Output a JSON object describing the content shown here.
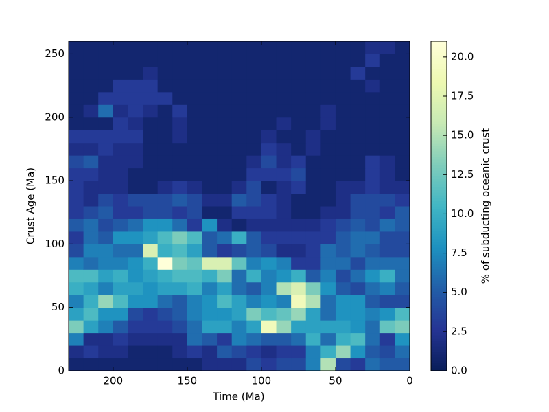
{
  "chart_data": {
    "type": "heatmap",
    "xlabel": "Time (Ma)",
    "ylabel": "Crust Age (Ma)",
    "colorbar_label": "% of subducting oceanic crust",
    "colormap": "YlGnBu",
    "xlim": [
      230,
      0
    ],
    "ylim": [
      0,
      260
    ],
    "clim": [
      0,
      21
    ],
    "xticks": [
      200,
      150,
      100,
      50,
      0
    ],
    "yticks": [
      0,
      50,
      100,
      150,
      200,
      250
    ],
    "cticks": [
      {
        "value": 0,
        "label": "0.0"
      },
      2.5,
      {
        "value": 5,
        "label": "5.0"
      },
      7.5,
      {
        "value": 10,
        "label": "10.0"
      },
      12.5,
      {
        "value": 15,
        "label": "15.0"
      },
      17.5,
      {
        "value": 20,
        "label": "20.0"
      }
    ],
    "xbins": [
      230,
      220,
      210,
      200,
      190,
      180,
      170,
      160,
      150,
      140,
      130,
      120,
      110,
      100,
      90,
      80,
      70,
      60,
      50,
      40,
      30,
      20,
      10,
      0
    ],
    "ybins": [
      0,
      10,
      20,
      30,
      40,
      50,
      60,
      70,
      80,
      90,
      100,
      110,
      120,
      130,
      140,
      150,
      160,
      170,
      180,
      190,
      200,
      210,
      220,
      230,
      240,
      250,
      260
    ],
    "values": [
      [
        1,
        1,
        1,
        1,
        1,
        1,
        1,
        1,
        1,
        2,
        2,
        2,
        4,
        3,
        4,
        4,
        7,
        15,
        4,
        3,
        6,
        5,
        5
      ],
      [
        2,
        3,
        2,
        2,
        1,
        1,
        1,
        2,
        3,
        2,
        5,
        4,
        3,
        2,
        3,
        3,
        7,
        10,
        14,
        8,
        5,
        4,
        6
      ],
      [
        7,
        2,
        2,
        3,
        2,
        2,
        2,
        2,
        6,
        5,
        3,
        7,
        6,
        5,
        5,
        6,
        10,
        6,
        10,
        11,
        6,
        3,
        8
      ],
      [
        13,
        9,
        7,
        5,
        3,
        3,
        3,
        4,
        6,
        9,
        9,
        7,
        9,
        19,
        14,
        9,
        9,
        9,
        9,
        8,
        6,
        12,
        13
      ],
      [
        9,
        11,
        8,
        8,
        4,
        3,
        4,
        5,
        7,
        8,
        8,
        9,
        13,
        11,
        12,
        14,
        9,
        6,
        8,
        8,
        7,
        8,
        11
      ],
      [
        7,
        10,
        14,
        11,
        8,
        8,
        6,
        5,
        7,
        8,
        11,
        9,
        7,
        8,
        7,
        19,
        15,
        6,
        8,
        8,
        5,
        4,
        4
      ],
      [
        10,
        9,
        7,
        9,
        9,
        8,
        9,
        9,
        10,
        7,
        9,
        6,
        5,
        7,
        15,
        17,
        13,
        8,
        5,
        4,
        6,
        7,
        5
      ],
      [
        11,
        11,
        9,
        10,
        8,
        9,
        10,
        11,
        11,
        10,
        13,
        6,
        10,
        7,
        8,
        10,
        5,
        7,
        4,
        6,
        8,
        10,
        6
      ],
      [
        7,
        6,
        7,
        7,
        8,
        10,
        21,
        13,
        12,
        17,
        17,
        12,
        7,
        8,
        7,
        3,
        3,
        6,
        6,
        4,
        6,
        6,
        6
      ],
      [
        4,
        7,
        7,
        6,
        6,
        17,
        10,
        11,
        9,
        5,
        3,
        4,
        5,
        4,
        2,
        2,
        3,
        6,
        5,
        6,
        5,
        4,
        4
      ],
      [
        3,
        6,
        5,
        8,
        8,
        9,
        11,
        13,
        11,
        5,
        6,
        10,
        5,
        3,
        3,
        3,
        3,
        3,
        5,
        6,
        6,
        4,
        4
      ],
      [
        5,
        6,
        4,
        5,
        6,
        8,
        8,
        6,
        3,
        8,
        2,
        1,
        2,
        2,
        2,
        2,
        2,
        3,
        4,
        5,
        4,
        6,
        5
      ],
      [
        3,
        4,
        5,
        3,
        3,
        4,
        4,
        3,
        4,
        1,
        1,
        3,
        3,
        3,
        2,
        1,
        1,
        2,
        2,
        4,
        4,
        3,
        5
      ],
      [
        3,
        2,
        4,
        3,
        4,
        4,
        4,
        5,
        4,
        2,
        2,
        5,
        4,
        3,
        2,
        1,
        1,
        1,
        2,
        4,
        4,
        4,
        3
      ],
      [
        3,
        2,
        2,
        2,
        1,
        1,
        2,
        3,
        2,
        1,
        1,
        2,
        4,
        1,
        2,
        3,
        1,
        1,
        2,
        2,
        3,
        2,
        2
      ],
      [
        3,
        3,
        2,
        2,
        1,
        1,
        1,
        1,
        1,
        1,
        1,
        1,
        3,
        3,
        3,
        4,
        1,
        1,
        1,
        1,
        3,
        2,
        1
      ],
      [
        4,
        5,
        2,
        2,
        2,
        1,
        1,
        1,
        1,
        1,
        1,
        1,
        2,
        4,
        2,
        3,
        1,
        1,
        1,
        1,
        3,
        2,
        1
      ],
      [
        2,
        2,
        3,
        2,
        2,
        1,
        1,
        1,
        1,
        1,
        1,
        1,
        1,
        3,
        2,
        1,
        2,
        1,
        1,
        1,
        1,
        1,
        1
      ],
      [
        3,
        3,
        3,
        3,
        3,
        1,
        1,
        2,
        1,
        1,
        1,
        1,
        1,
        2,
        1,
        1,
        2,
        1,
        1,
        1,
        1,
        1,
        1
      ],
      [
        1,
        1,
        1,
        3,
        2,
        1,
        1,
        2,
        1,
        1,
        1,
        1,
        1,
        1,
        2,
        1,
        1,
        2,
        1,
        1,
        1,
        1,
        1
      ],
      [
        1,
        2,
        6,
        2,
        3,
        2,
        1,
        3,
        1,
        1,
        1,
        1,
        1,
        1,
        1,
        1,
        1,
        2,
        1,
        1,
        1,
        1,
        1
      ],
      [
        1,
        1,
        3,
        3,
        3,
        3,
        3,
        1,
        1,
        1,
        1,
        1,
        1,
        1,
        1,
        1,
        1,
        1,
        1,
        1,
        1,
        1,
        1
      ],
      [
        1,
        1,
        1,
        3,
        3,
        3,
        1,
        1,
        1,
        1,
        1,
        1,
        1,
        1,
        1,
        1,
        1,
        1,
        1,
        1,
        2,
        1,
        1
      ],
      [
        1,
        1,
        1,
        1,
        1,
        2,
        1,
        1,
        1,
        1,
        1,
        1,
        1,
        1,
        1,
        1,
        1,
        1,
        1,
        3,
        1,
        1,
        1
      ],
      [
        1,
        1,
        1,
        1,
        1,
        1,
        1,
        1,
        1,
        1,
        1,
        1,
        1,
        1,
        1,
        1,
        1,
        1,
        1,
        1,
        3,
        1,
        1
      ],
      [
        1,
        1,
        1,
        1,
        1,
        1,
        1,
        1,
        1,
        1,
        1,
        1,
        1,
        1,
        1,
        1,
        1,
        1,
        1,
        1,
        2,
        2,
        1
      ]
    ]
  }
}
